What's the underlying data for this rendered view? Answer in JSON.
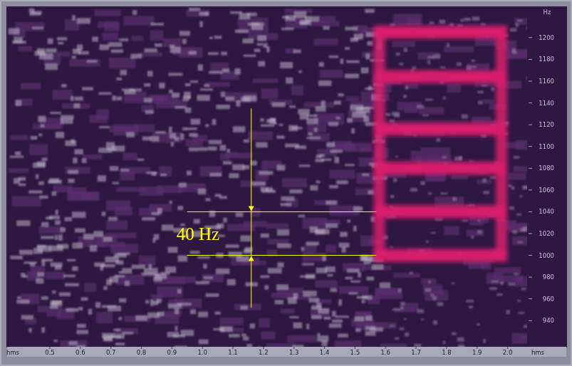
{
  "chart_data": {
    "type": "spectrogram",
    "x_label": "hms",
    "y_label": "Hz",
    "xlim": [
      0.36,
      2.064
    ],
    "ylim": [
      916,
      1228
    ],
    "xticks": [
      0.5,
      0.6,
      0.7,
      0.8,
      0.9,
      {
        "value": 1,
        "label": "1.0"
      },
      1.1,
      1.2,
      1.3,
      1.4,
      1.5,
      1.6,
      1.7,
      1.8,
      1.9,
      {
        "value": 2,
        "label": "2.0"
      }
    ],
    "yticks": [
      940,
      960,
      980,
      1000,
      1020,
      1040,
      1060,
      1080,
      1100,
      1120,
      1140,
      1160,
      1180,
      1200
    ],
    "signal": {
      "time": [
        1.58,
        1.98
      ],
      "freqs": [
        1000,
        1040,
        1080,
        1116,
        1164,
        1205
      ],
      "color": "#d81e6c"
    },
    "annotations": [
      {
        "text": "40 Hz",
        "x": 1.16,
        "x_range": [
          0.95,
          1.57
        ],
        "y": [
          1000,
          1040
        ],
        "y_range": [
          952,
          1135
        ],
        "color": "#ffff00"
      }
    ]
  }
}
